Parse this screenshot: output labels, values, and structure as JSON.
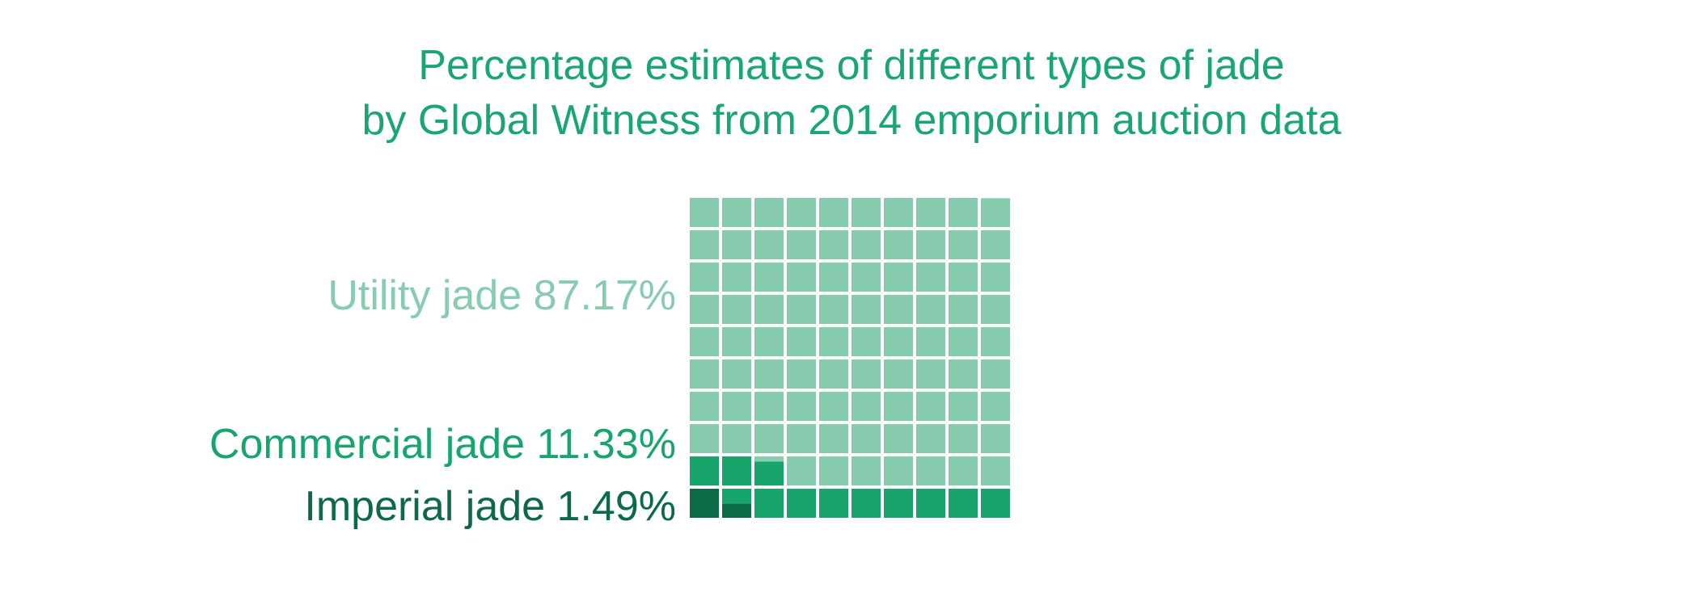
{
  "chart_data": {
    "type": "waffle",
    "title_lines": [
      "Percentage estimates of different types of jade",
      "by Global Witness from 2014 emporium auction data"
    ],
    "grid": {
      "rows": 10,
      "cols": 10
    },
    "categories": [
      {
        "name": "Utility jade",
        "label": "Utility jade 87.17%",
        "value": 87.17,
        "color": "#88ccb0"
      },
      {
        "name": "Commercial jade",
        "label": "Commercial jade 11.33%",
        "value": 11.33,
        "color": "#17a56b"
      },
      {
        "name": "Imperial jade",
        "label": "Imperial jade 1.49%",
        "value": 1.49,
        "color": "#0d6a46"
      }
    ],
    "fill_order": "bottom-to-top, left-to-right; Imperial first, then Commercial, then Utility"
  }
}
